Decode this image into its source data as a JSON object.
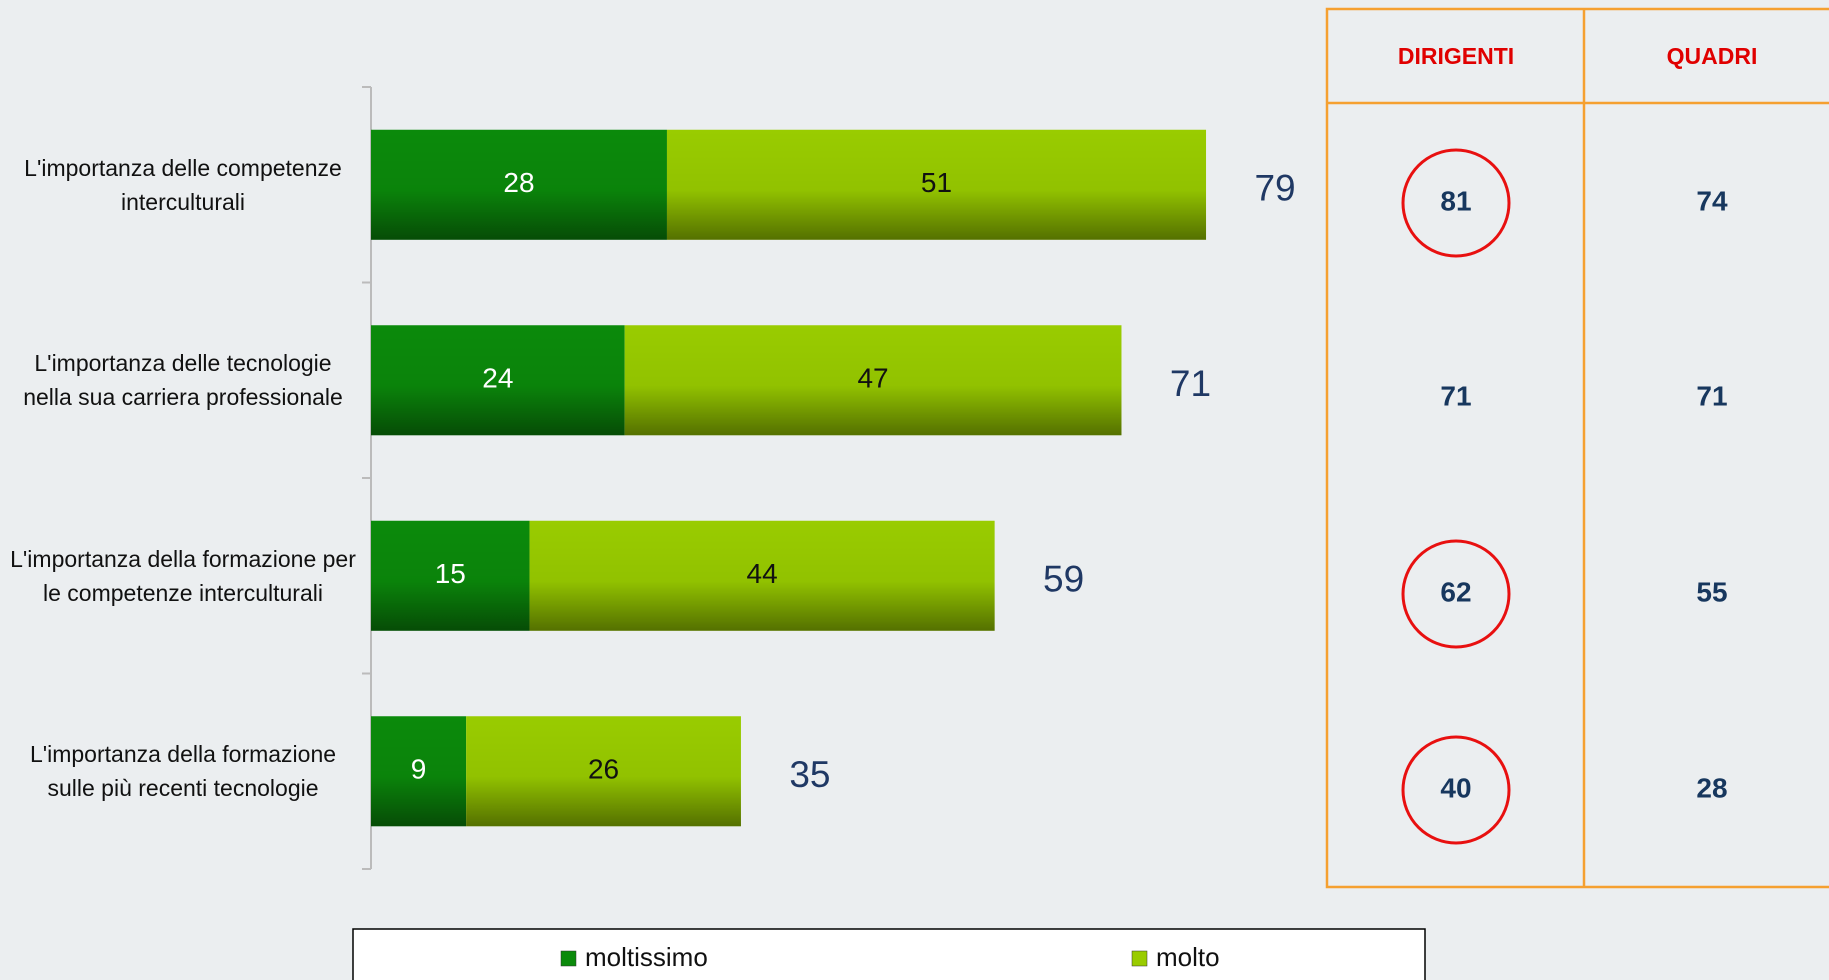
{
  "chart_data": {
    "type": "stacked-bar-horizontal",
    "categories": [
      "L'importanza delle competenze interculturali",
      "L'importanza delle tecnologie nella sua carriera professionale",
      "L'importanza della formazione per le competenze interculturali",
      "L'importanza della formazione sulle più recenti tecnologie"
    ],
    "series": [
      {
        "name": "moltissimo",
        "color": "#0b8a0b",
        "values": [
          28,
          24,
          15,
          9
        ]
      },
      {
        "name": "molto",
        "color": "#99cc00",
        "values": [
          51,
          47,
          44,
          26
        ]
      }
    ],
    "totals": [
      79,
      71,
      59,
      35
    ],
    "xlim": [
      0,
      100
    ]
  },
  "table": {
    "columns": [
      "DIRIGENTI",
      "QUADRI"
    ],
    "rows": [
      [
        81,
        74
      ],
      [
        71,
        71
      ],
      [
        62,
        55
      ],
      [
        40,
        28
      ]
    ],
    "highlighted": [
      [
        true,
        false
      ],
      [
        false,
        false
      ],
      [
        true,
        false
      ],
      [
        true,
        false
      ]
    ]
  }
}
